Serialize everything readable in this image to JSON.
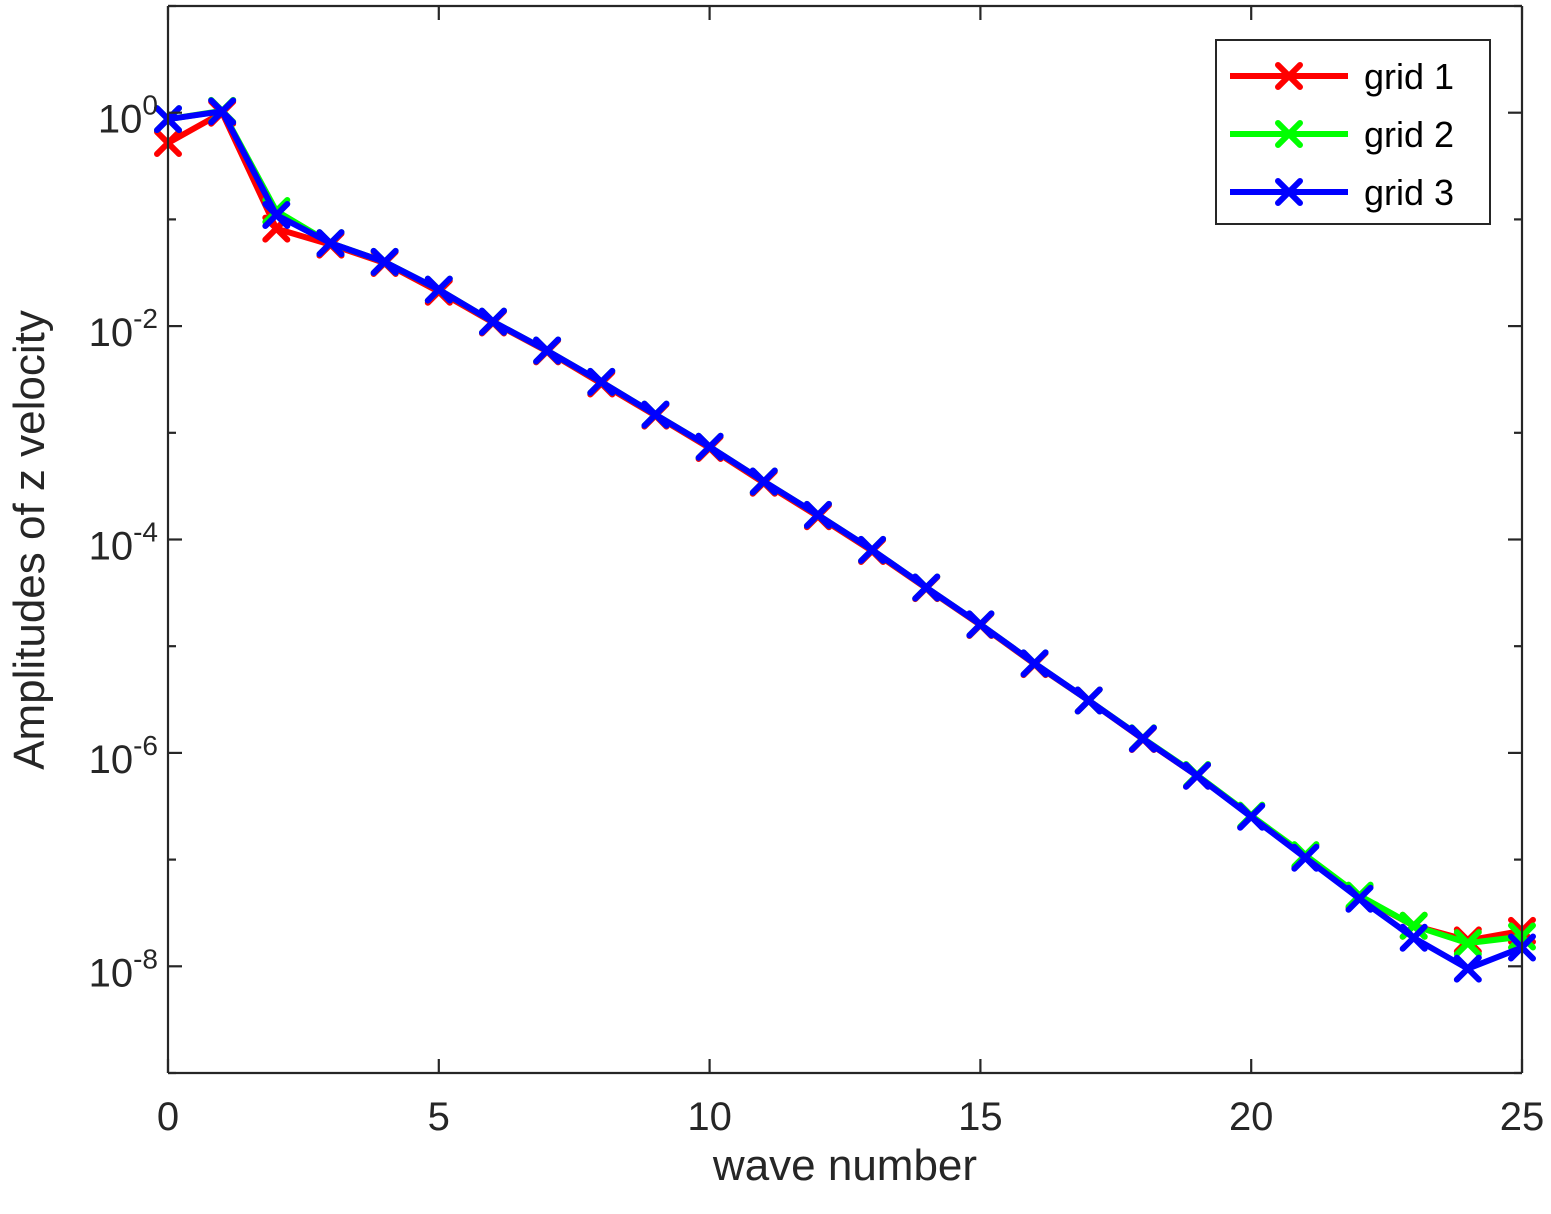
{
  "chart_data": {
    "type": "line",
    "xlabel": "wave number",
    "ylabel": "Amplitudes of z velocity",
    "xlim": [
      0,
      25
    ],
    "ylim": [
      1e-09,
      10
    ],
    "yscale": "log",
    "xticks": [
      0,
      5,
      10,
      15,
      20,
      25
    ],
    "xtick_labels": [
      "0",
      "5",
      "10",
      "15",
      "20",
      "25"
    ],
    "yticks": [
      {
        "value": 1,
        "base": "10",
        "exp": "0"
      },
      {
        "value": 0.01,
        "base": "10",
        "exp": "-2"
      },
      {
        "value": 0.0001,
        "base": "10",
        "exp": "-4"
      },
      {
        "value": 1e-06,
        "base": "10",
        "exp": "-6"
      },
      {
        "value": 1e-08,
        "base": "10",
        "exp": "-8"
      }
    ],
    "grid": false,
    "legend_position": "top-right",
    "x": [
      0,
      1,
      2,
      3,
      4,
      5,
      6,
      7,
      8,
      9,
      10,
      11,
      12,
      13,
      14,
      15,
      16,
      17,
      18,
      19,
      20,
      21,
      22,
      23,
      24,
      25
    ],
    "series": [
      {
        "name": "grid 1",
        "color": "#ff0000",
        "marker": "x",
        "values": [
          0.52,
          1.0,
          0.082,
          0.058,
          0.039,
          0.021,
          0.0108,
          0.0058,
          0.0029,
          0.00145,
          0.00072,
          0.00034,
          0.000165,
          7.8e-05,
          3.5e-05,
          1.58e-05,
          6.8e-06,
          3.1e-06,
          1.35e-06,
          6.1e-07,
          2.55e-07,
          1.08e-07,
          4.5e-08,
          2.4e-08,
          1.75e-08,
          2.15e-08
        ]
      },
      {
        "name": "grid 2",
        "color": "#00ff00",
        "marker": "x",
        "values": [
          0.87,
          1.04,
          0.12,
          0.06,
          0.04,
          0.022,
          0.011,
          0.0059,
          0.003,
          0.00148,
          0.00074,
          0.00035,
          0.00017,
          8e-05,
          3.55e-05,
          1.6e-05,
          6.9e-06,
          3.1e-06,
          1.37e-06,
          6.2e-07,
          2.58e-07,
          1.1e-07,
          4.6e-08,
          2.4e-08,
          1.65e-08,
          1.9e-08
        ]
      },
      {
        "name": "grid 3",
        "color": "#0000ff",
        "marker": "x",
        "values": [
          0.87,
          1.03,
          0.11,
          0.06,
          0.04,
          0.022,
          0.011,
          0.0059,
          0.003,
          0.00148,
          0.00074,
          0.00035,
          0.00017,
          8e-05,
          3.55e-05,
          1.6e-05,
          6.9e-06,
          3.1e-06,
          1.36e-06,
          6.1e-07,
          2.52e-07,
          1.04e-07,
          4.3e-08,
          1.85e-08,
          9.5e-09,
          1.5e-08
        ]
      }
    ]
  }
}
